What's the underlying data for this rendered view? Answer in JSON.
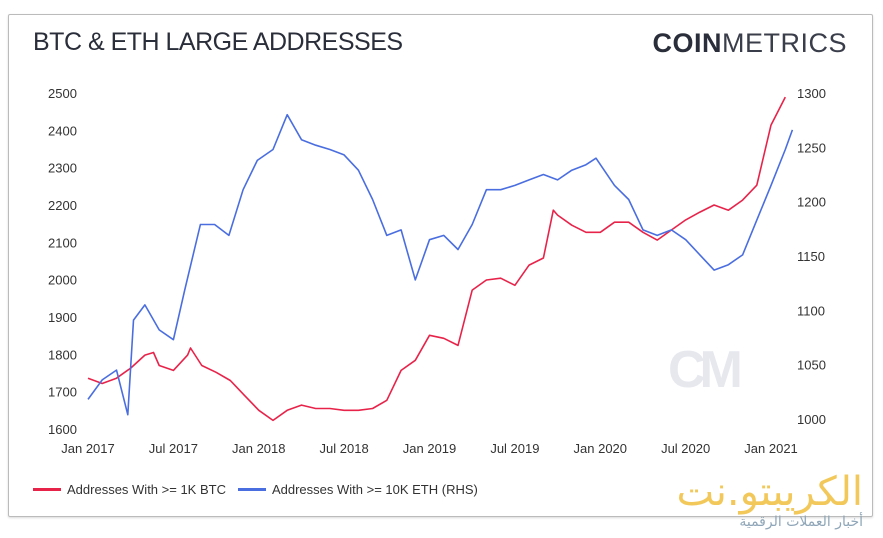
{
  "header": {
    "title": "BTC & ETH LARGE ADDRESSES",
    "brand_bold": "COIN",
    "brand_light": "METRICS"
  },
  "watermark": {
    "cm": "CM",
    "site": "الكريبتو.نت",
    "tagline": "أخبار العملات الرقمية"
  },
  "colors": {
    "btc": "#e8234a",
    "eth": "#4a6ee0"
  },
  "chart_data": {
    "type": "line",
    "title": "BTC & ETH LARGE ADDRESSES",
    "x_unit": "months since Jan 2017",
    "x_ticks": [
      {
        "t": 0,
        "label": "Jan 2017"
      },
      {
        "t": 6,
        "label": "Jul 2017"
      },
      {
        "t": 12,
        "label": "Jan 2018"
      },
      {
        "t": 18,
        "label": "Jul 2018"
      },
      {
        "t": 24,
        "label": "Jan 2019"
      },
      {
        "t": 30,
        "label": "Jul 2019"
      },
      {
        "t": 36,
        "label": "Jan 2020"
      },
      {
        "t": 42,
        "label": "Jul 2020"
      },
      {
        "t": 48,
        "label": "Jan 2021"
      }
    ],
    "y_left": {
      "range": [
        1600,
        2500
      ],
      "ticks": [
        "2500",
        "2400",
        "2300",
        "2200",
        "2100",
        "2000",
        "1900",
        "1800",
        "1700",
        "1600"
      ]
    },
    "y_right": {
      "range": [
        1000,
        1300
      ],
      "ticks": [
        "1300",
        "1250",
        "1200",
        "1150",
        "1100",
        "1050",
        "1000"
      ]
    },
    "legend_position": "bottom-left",
    "series": [
      {
        "name": "Addresses With >= 1K BTC",
        "axis": "left",
        "color": "#e8234a",
        "points": [
          [
            0,
            1736
          ],
          [
            1,
            1722
          ],
          [
            2,
            1736
          ],
          [
            3,
            1763
          ],
          [
            4,
            1798
          ],
          [
            4.6,
            1805
          ],
          [
            5,
            1770
          ],
          [
            6,
            1757
          ],
          [
            7,
            1798
          ],
          [
            7.2,
            1817
          ],
          [
            8,
            1770
          ],
          [
            9,
            1752
          ],
          [
            10,
            1730
          ],
          [
            11,
            1690
          ],
          [
            12,
            1650
          ],
          [
            13,
            1623
          ],
          [
            14,
            1650
          ],
          [
            15,
            1664
          ],
          [
            16,
            1655
          ],
          [
            17,
            1655
          ],
          [
            18,
            1650
          ],
          [
            19,
            1650
          ],
          [
            20,
            1655
          ],
          [
            21,
            1677
          ],
          [
            22,
            1757
          ],
          [
            23,
            1784
          ],
          [
            24,
            1851
          ],
          [
            25,
            1843
          ],
          [
            26,
            1824
          ],
          [
            27,
            1972
          ],
          [
            28,
            1999
          ],
          [
            29,
            2004
          ],
          [
            30,
            1985
          ],
          [
            31,
            2039
          ],
          [
            32,
            2058
          ],
          [
            32.7,
            2186
          ],
          [
            33,
            2173
          ],
          [
            34,
            2146
          ],
          [
            35,
            2127
          ],
          [
            36,
            2127
          ],
          [
            37,
            2154
          ],
          [
            38,
            2154
          ],
          [
            39,
            2127
          ],
          [
            40,
            2106
          ],
          [
            41,
            2133
          ],
          [
            42,
            2160
          ],
          [
            43,
            2181
          ],
          [
            44,
            2200
          ],
          [
            45,
            2186
          ],
          [
            46,
            2213
          ],
          [
            47,
            2253
          ],
          [
            48,
            2414
          ],
          [
            49,
            2489
          ]
        ]
      },
      {
        "name": "Addresses With >= 10K ETH (RHS)",
        "axis": "right",
        "color": "#4a6ee0",
        "points": [
          [
            0,
            1018
          ],
          [
            1,
            1036
          ],
          [
            2,
            1045
          ],
          [
            2.8,
            1004
          ],
          [
            3.2,
            1091
          ],
          [
            4,
            1105
          ],
          [
            5,
            1082
          ],
          [
            6,
            1073
          ],
          [
            6.8,
            1119
          ],
          [
            7.9,
            1179
          ],
          [
            8.9,
            1179
          ],
          [
            9.9,
            1169
          ],
          [
            10.9,
            1211
          ],
          [
            11.9,
            1238
          ],
          [
            13,
            1248
          ],
          [
            14,
            1280
          ],
          [
            15,
            1257
          ],
          [
            16,
            1252
          ],
          [
            17,
            1248
          ],
          [
            18,
            1243
          ],
          [
            19,
            1229
          ],
          [
            20,
            1202
          ],
          [
            21,
            1169
          ],
          [
            22,
            1174
          ],
          [
            23,
            1128
          ],
          [
            24,
            1165
          ],
          [
            25,
            1169
          ],
          [
            26,
            1156
          ],
          [
            27,
            1179
          ],
          [
            28,
            1211
          ],
          [
            29,
            1211
          ],
          [
            30,
            1215
          ],
          [
            31,
            1220
          ],
          [
            32,
            1225
          ],
          [
            33,
            1220
          ],
          [
            34,
            1229
          ],
          [
            35,
            1234
          ],
          [
            35.7,
            1240
          ],
          [
            37,
            1215
          ],
          [
            38,
            1202
          ],
          [
            39,
            1174
          ],
          [
            40,
            1169
          ],
          [
            41,
            1174
          ],
          [
            42,
            1165
          ],
          [
            43,
            1151
          ],
          [
            44,
            1137
          ],
          [
            45,
            1142
          ],
          [
            46,
            1151
          ],
          [
            47,
            1183
          ],
          [
            48,
            1215
          ],
          [
            49,
            1248
          ],
          [
            49.5,
            1266
          ]
        ]
      }
    ]
  }
}
